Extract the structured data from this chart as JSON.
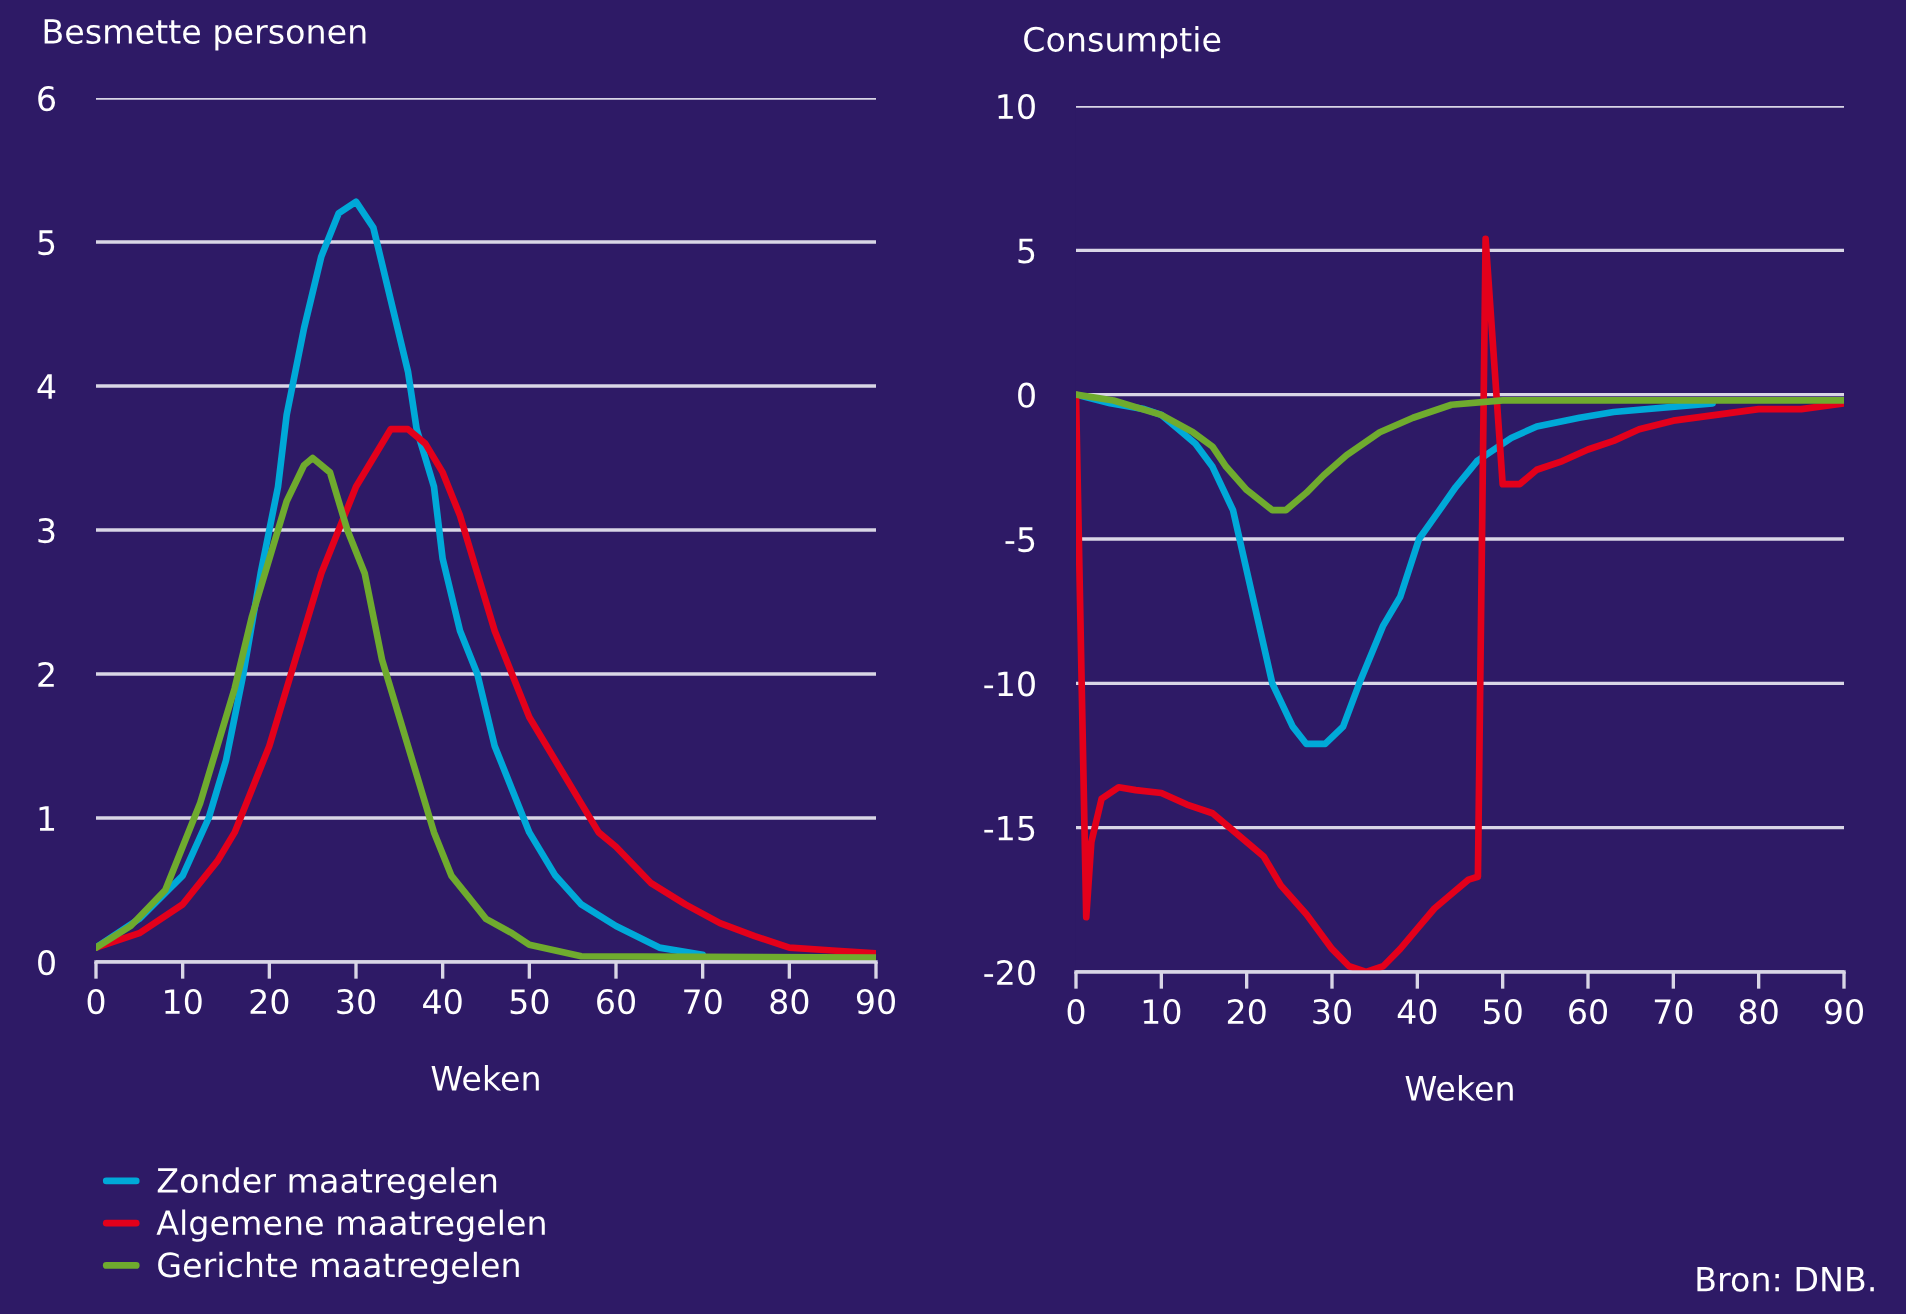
{
  "chart_data": [
    {
      "type": "line",
      "title": "Besmette personen",
      "xlabel": "Weken",
      "xlim": [
        0,
        90
      ],
      "xticks": [
        0,
        10,
        20,
        30,
        40,
        50,
        60,
        70,
        80,
        90
      ],
      "ylim": [
        0,
        6
      ],
      "yticks": [
        0,
        1,
        2,
        3,
        4,
        5,
        6
      ],
      "grid": "y",
      "legend": "bottom left",
      "series": [
        {
          "name": "Zonder maatregelen",
          "color": "#00a9d8",
          "x": [
            0,
            5,
            10,
            13,
            15,
            17,
            19,
            21,
            22,
            24,
            26,
            28,
            30,
            32,
            34,
            36,
            37,
            39,
            40,
            42,
            44,
            46,
            48,
            50,
            53,
            56,
            60,
            65,
            70
          ],
          "values": [
            0.1,
            0.3,
            0.6,
            1.0,
            1.4,
            2.0,
            2.7,
            3.3,
            3.8,
            4.4,
            4.9,
            5.2,
            5.28,
            5.1,
            4.6,
            4.1,
            3.7,
            3.3,
            2.8,
            2.3,
            2.0,
            1.5,
            1.2,
            0.9,
            0.6,
            0.4,
            0.25,
            0.1,
            0.05
          ]
        },
        {
          "name": "Algemene maatregelen",
          "color": "#e3001b",
          "x": [
            0,
            5,
            10,
            14,
            16,
            18,
            20,
            22,
            24,
            26,
            28,
            30,
            32,
            34,
            36,
            38,
            40,
            42,
            44,
            46,
            48,
            50,
            52,
            54,
            56,
            58,
            60,
            64,
            68,
            72,
            76,
            80,
            85,
            90
          ],
          "values": [
            0.1,
            0.2,
            0.4,
            0.7,
            0.9,
            1.2,
            1.5,
            1.9,
            2.3,
            2.7,
            3.0,
            3.3,
            3.5,
            3.7,
            3.7,
            3.6,
            3.4,
            3.1,
            2.7,
            2.3,
            2.0,
            1.7,
            1.5,
            1.3,
            1.1,
            0.9,
            0.8,
            0.55,
            0.4,
            0.27,
            0.18,
            0.1,
            0.08,
            0.06
          ]
        },
        {
          "name": "Gerichte maatregelen",
          "color": "#6fab2e",
          "x": [
            0,
            4,
            8,
            10,
            12,
            14,
            16,
            18,
            20,
            22,
            24,
            25,
            27,
            29,
            31,
            33,
            35,
            37,
            39,
            41,
            43,
            45,
            48,
            50,
            53,
            56,
            90
          ],
          "values": [
            0.1,
            0.25,
            0.5,
            0.8,
            1.1,
            1.5,
            1.9,
            2.4,
            2.8,
            3.2,
            3.45,
            3.5,
            3.4,
            3.0,
            2.7,
            2.1,
            1.7,
            1.3,
            0.9,
            0.6,
            0.45,
            0.3,
            0.2,
            0.12,
            0.08,
            0.04,
            0.03
          ]
        }
      ]
    },
    {
      "type": "line",
      "title": "Consumptie",
      "xlabel": "Weken",
      "xlim": [
        0,
        90
      ],
      "xticks": [
        0,
        10,
        20,
        30,
        40,
        50,
        60,
        70,
        80,
        90
      ],
      "ylim": [
        -20,
        10
      ],
      "yticks": [
        -20,
        -15,
        -10,
        -5,
        0,
        5,
        10
      ],
      "grid": "y",
      "annotations": [
        "Bron: DNB."
      ],
      "series": [
        {
          "color": "#00a9d8",
          "x": [
            0,
            4,
            8,
            10,
            12,
            14,
            16,
            18.4,
            20.7,
            23,
            25.4,
            27,
            29.2,
            31.3,
            33.2,
            36,
            38,
            40.2,
            42.6,
            44.5,
            47,
            51,
            54,
            59,
            63,
            74.6
          ],
          "values": [
            0,
            -0.3,
            -0.5,
            -0.7,
            -1.2,
            -1.7,
            -2.5,
            -4,
            -7,
            -10,
            -11.5,
            -12.1,
            -12.1,
            -11.5,
            -10,
            -8,
            -7,
            -5,
            -4,
            -3.2,
            -2.3,
            -1.5,
            -1.1,
            -0.8,
            -0.6,
            -0.3
          ]
        },
        {
          "color": "#e3001b",
          "x": [
            0,
            1.2,
            1.8,
            3,
            5,
            7,
            10,
            13,
            16,
            18,
            22,
            24,
            27,
            30,
            32,
            34,
            36,
            38,
            40,
            42,
            44,
            46,
            47.1,
            48,
            50,
            52,
            54,
            57,
            60,
            63,
            66,
            70,
            75,
            80,
            85,
            90
          ],
          "values": [
            0,
            -18.1,
            -15.5,
            -14,
            -13.6,
            -13.7,
            -13.8,
            -14.2,
            -14.5,
            -15,
            -16,
            -17,
            -18,
            -19.2,
            -19.8,
            -20,
            -19.8,
            -19.2,
            -18.5,
            -17.8,
            -17.3,
            -16.8,
            -16.7,
            5.4,
            -3.1,
            -3.1,
            -2.6,
            -2.3,
            -1.9,
            -1.6,
            -1.2,
            -0.9,
            -0.7,
            -0.5,
            -0.5,
            -0.3
          ]
        },
        {
          "color": "#6fab2e",
          "x": [
            0,
            4.4,
            10,
            13.7,
            16,
            17.6,
            20,
            23,
            24.6,
            27,
            29,
            31.7,
            35.6,
            39.5,
            44,
            50,
            90
          ],
          "values": [
            0,
            -0.2,
            -0.7,
            -1.3,
            -1.8,
            -2.5,
            -3.3,
            -4.0,
            -4.0,
            -3.4,
            -2.8,
            -2.1,
            -1.3,
            -0.8,
            -0.35,
            -0.2,
            -0.2
          ]
        }
      ]
    }
  ]
}
